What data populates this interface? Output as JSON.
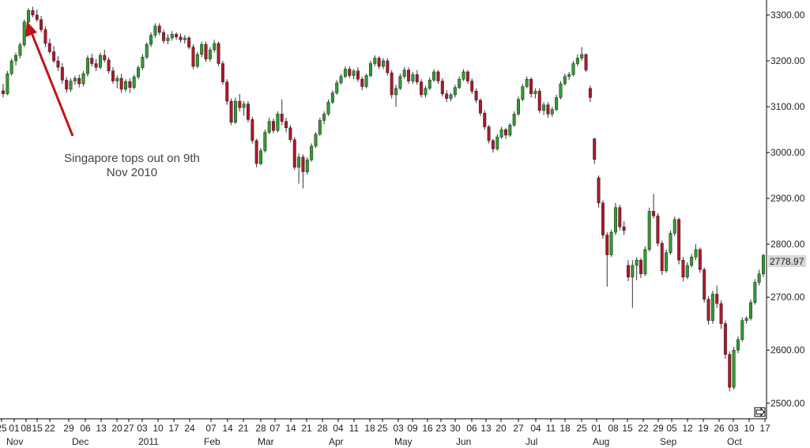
{
  "chart_data": {
    "type": "candlestick",
    "title": "",
    "xlabel": "",
    "ylabel": "",
    "ylim": [
      2490,
      3330
    ],
    "y_ticks": [
      2500,
      2600,
      2700,
      2800,
      2900,
      3000,
      3100,
      3200,
      3300
    ],
    "y_tick_labels": [
      "2500.00",
      "2600.00",
      "2700.00",
      "2800.00",
      "2900.00",
      "3000.00",
      "3100.00",
      "3200.00",
      "3300.00"
    ],
    "last_price_label": "2778.97",
    "last_price": 2778.97,
    "colors": {
      "up": "#2e9e2e",
      "down": "#b0182a",
      "wick": "#333333",
      "axis": "#000000",
      "arrow": "#c0121f",
      "price_tag_bg": "#d8d8d8"
    },
    "x_day_labels": [
      "25",
      "01",
      "08",
      "15",
      "22",
      "29",
      "06",
      "13",
      "20",
      "27",
      "03",
      "10",
      "17",
      "24",
      "07",
      "14",
      "21",
      "28",
      "07",
      "14",
      "21",
      "28",
      "04",
      "11",
      "18",
      "25",
      "03",
      "09",
      "16",
      "23",
      "30",
      "06",
      "13",
      "20",
      "27",
      "04",
      "11",
      "18",
      "25",
      "01",
      "08",
      "15",
      "22",
      "29",
      "05",
      "12",
      "19",
      "26",
      "03",
      "10",
      "17"
    ],
    "x_month_labels": [
      "Nov",
      "Dec",
      "2011",
      "Feb",
      "Mar",
      "Apr",
      "May",
      "Jun",
      "Jul",
      "Aug",
      "Sep",
      "Oct"
    ],
    "annotation": {
      "lines": [
        "Singapore tops out on 9th",
        "Nov 2010"
      ]
    },
    "candles": [
      [
        3135,
        3150,
        3120,
        3128
      ],
      [
        3128,
        3178,
        3125,
        3172
      ],
      [
        3172,
        3205,
        3168,
        3200
      ],
      [
        3200,
        3218,
        3190,
        3212
      ],
      [
        3212,
        3240,
        3205,
        3235
      ],
      [
        3235,
        3290,
        3230,
        3285
      ],
      [
        3285,
        3315,
        3280,
        3310
      ],
      [
        3310,
        3318,
        3295,
        3300
      ],
      [
        3300,
        3312,
        3285,
        3290
      ],
      [
        3290,
        3298,
        3262,
        3268
      ],
      [
        3268,
        3275,
        3230,
        3238
      ],
      [
        3238,
        3248,
        3215,
        3220
      ],
      [
        3220,
        3232,
        3195,
        3200
      ],
      [
        3200,
        3210,
        3178,
        3186
      ],
      [
        3186,
        3195,
        3150,
        3158
      ],
      [
        3158,
        3165,
        3130,
        3138
      ],
      [
        3138,
        3162,
        3132,
        3156
      ],
      [
        3156,
        3168,
        3148,
        3162
      ],
      [
        3162,
        3170,
        3142,
        3150
      ],
      [
        3150,
        3178,
        3144,
        3172
      ],
      [
        3172,
        3212,
        3166,
        3206
      ],
      [
        3206,
        3216,
        3188,
        3194
      ],
      [
        3194,
        3204,
        3178,
        3186
      ],
      [
        3186,
        3218,
        3182,
        3212
      ],
      [
        3212,
        3224,
        3196,
        3202
      ],
      [
        3202,
        3208,
        3172,
        3178
      ],
      [
        3178,
        3186,
        3150,
        3156
      ],
      [
        3156,
        3168,
        3140,
        3162
      ],
      [
        3162,
        3172,
        3130,
        3138
      ],
      [
        3138,
        3160,
        3132,
        3155
      ],
      [
        3155,
        3162,
        3130,
        3142
      ],
      [
        3142,
        3170,
        3138,
        3165
      ],
      [
        3165,
        3190,
        3160,
        3185
      ],
      [
        3185,
        3215,
        3180,
        3208
      ],
      [
        3208,
        3240,
        3204,
        3236
      ],
      [
        3236,
        3262,
        3230,
        3256
      ],
      [
        3256,
        3282,
        3250,
        3276
      ],
      [
        3276,
        3282,
        3256,
        3262
      ],
      [
        3262,
        3268,
        3238,
        3244
      ],
      [
        3244,
        3258,
        3236,
        3250
      ],
      [
        3250,
        3265,
        3244,
        3258
      ],
      [
        3258,
        3262,
        3246,
        3252
      ],
      [
        3252,
        3260,
        3240,
        3246
      ],
      [
        3246,
        3256,
        3238,
        3250
      ],
      [
        3250,
        3254,
        3225,
        3230
      ],
      [
        3230,
        3236,
        3182,
        3188
      ],
      [
        3188,
        3220,
        3184,
        3214
      ],
      [
        3214,
        3242,
        3208,
        3236
      ],
      [
        3236,
        3242,
        3198,
        3204
      ],
      [
        3204,
        3230,
        3198,
        3224
      ],
      [
        3224,
        3246,
        3218,
        3238
      ],
      [
        3238,
        3242,
        3188,
        3194
      ],
      [
        3194,
        3200,
        3148,
        3154
      ],
      [
        3154,
        3160,
        3104,
        3112
      ],
      [
        3112,
        3118,
        3060,
        3066
      ],
      [
        3066,
        3120,
        3062,
        3112
      ],
      [
        3112,
        3128,
        3090,
        3098
      ],
      [
        3098,
        3112,
        3080,
        3106
      ],
      [
        3106,
        3112,
        3066,
        3072
      ],
      [
        3072,
        3078,
        3020,
        3026
      ],
      [
        3026,
        3030,
        2968,
        2976
      ],
      [
        2976,
        3010,
        2972,
        3004
      ],
      [
        3004,
        3050,
        3000,
        3044
      ],
      [
        3044,
        3076,
        3040,
        3068
      ],
      [
        3068,
        3074,
        3042,
        3048
      ],
      [
        3048,
        3090,
        3044,
        3084
      ],
      [
        3084,
        3116,
        3060,
        3068
      ],
      [
        3068,
        3076,
        3044,
        3054
      ],
      [
        3054,
        3060,
        3022,
        3028
      ],
      [
        3028,
        3034,
        2962,
        2968
      ],
      [
        2968,
        2998,
        2932,
        2990
      ],
      [
        2990,
        2996,
        2922,
        2958
      ],
      [
        2958,
        2990,
        2952,
        2984
      ],
      [
        2984,
        3020,
        2980,
        3014
      ],
      [
        3014,
        3044,
        3010,
        3040
      ],
      [
        3040,
        3076,
        3036,
        3070
      ],
      [
        3070,
        3090,
        3062,
        3084
      ],
      [
        3084,
        3116,
        3080,
        3110
      ],
      [
        3110,
        3136,
        3106,
        3130
      ],
      [
        3130,
        3158,
        3126,
        3152
      ],
      [
        3152,
        3172,
        3148,
        3166
      ],
      [
        3166,
        3188,
        3162,
        3182
      ],
      [
        3182,
        3188,
        3162,
        3168
      ],
      [
        3168,
        3182,
        3160,
        3178
      ],
      [
        3178,
        3186,
        3154,
        3160
      ],
      [
        3160,
        3166,
        3136,
        3144
      ],
      [
        3144,
        3172,
        3140,
        3168
      ],
      [
        3168,
        3200,
        3164,
        3194
      ],
      [
        3194,
        3212,
        3188,
        3206
      ],
      [
        3206,
        3210,
        3182,
        3188
      ],
      [
        3188,
        3206,
        3182,
        3200
      ],
      [
        3200,
        3206,
        3168,
        3174
      ],
      [
        3174,
        3180,
        3118,
        3126
      ],
      [
        3126,
        3148,
        3100,
        3140
      ],
      [
        3140,
        3172,
        3136,
        3166
      ],
      [
        3166,
        3186,
        3160,
        3180
      ],
      [
        3180,
        3186,
        3150,
        3156
      ],
      [
        3156,
        3176,
        3150,
        3170
      ],
      [
        3170,
        3180,
        3148,
        3154
      ],
      [
        3154,
        3160,
        3120,
        3126
      ],
      [
        3126,
        3146,
        3120,
        3140
      ],
      [
        3140,
        3164,
        3136,
        3158
      ],
      [
        3158,
        3182,
        3154,
        3176
      ],
      [
        3176,
        3180,
        3150,
        3156
      ],
      [
        3156,
        3162,
        3122,
        3128
      ],
      [
        3128,
        3136,
        3110,
        3118
      ],
      [
        3118,
        3130,
        3112,
        3126
      ],
      [
        3126,
        3148,
        3120,
        3142
      ],
      [
        3142,
        3166,
        3138,
        3160
      ],
      [
        3160,
        3182,
        3156,
        3176
      ],
      [
        3176,
        3180,
        3150,
        3156
      ],
      [
        3156,
        3162,
        3128,
        3134
      ],
      [
        3134,
        3140,
        3108,
        3114
      ],
      [
        3114,
        3118,
        3080,
        3086
      ],
      [
        3086,
        3092,
        3050,
        3056
      ],
      [
        3056,
        3060,
        3020,
        3026
      ],
      [
        3026,
        3030,
        3000,
        3008
      ],
      [
        3008,
        3040,
        3004,
        3034
      ],
      [
        3034,
        3056,
        3030,
        3050
      ],
      [
        3050,
        3054,
        3030,
        3038
      ],
      [
        3038,
        3064,
        3034,
        3060
      ],
      [
        3060,
        3090,
        3056,
        3084
      ],
      [
        3084,
        3122,
        3080,
        3116
      ],
      [
        3116,
        3150,
        3112,
        3144
      ],
      [
        3144,
        3166,
        3140,
        3160
      ],
      [
        3160,
        3164,
        3120,
        3128
      ],
      [
        3128,
        3140,
        3118,
        3134
      ],
      [
        3134,
        3140,
        3086,
        3092
      ],
      [
        3092,
        3110,
        3082,
        3104
      ],
      [
        3104,
        3110,
        3076,
        3084
      ],
      [
        3084,
        3100,
        3078,
        3094
      ],
      [
        3094,
        3126,
        3090,
        3120
      ],
      [
        3120,
        3156,
        3116,
        3150
      ],
      [
        3150,
        3172,
        3146,
        3166
      ],
      [
        3166,
        3176,
        3158,
        3170
      ],
      [
        3170,
        3200,
        3166,
        3194
      ],
      [
        3194,
        3214,
        3188,
        3206
      ],
      [
        3206,
        3230,
        3200,
        3214
      ],
      [
        3214,
        3216,
        3176,
        3180
      ],
      [
        3140,
        3146,
        3110,
        3120
      ],
      [
        3030,
        3032,
        2975,
        2985
      ],
      [
        2945,
        2950,
        2880,
        2890
      ],
      [
        2890,
        2896,
        2812,
        2820
      ],
      [
        2820,
        2826,
        2720,
        2780
      ],
      [
        2780,
        2832,
        2776,
        2826
      ],
      [
        2826,
        2890,
        2820,
        2880
      ],
      [
        2880,
        2886,
        2830,
        2838
      ],
      [
        2838,
        2850,
        2820,
        2830
      ],
      [
        2760,
        2770,
        2730,
        2738
      ],
      [
        2738,
        2770,
        2680,
        2760
      ],
      [
        2760,
        2776,
        2732,
        2770
      ],
      [
        2770,
        2774,
        2736,
        2744
      ],
      [
        2744,
        2796,
        2740,
        2790
      ],
      [
        2790,
        2880,
        2786,
        2872
      ],
      [
        2872,
        2910,
        2856,
        2862
      ],
      [
        2862,
        2868,
        2796,
        2802
      ],
      [
        2802,
        2808,
        2742,
        2750
      ],
      [
        2750,
        2790,
        2746,
        2784
      ],
      [
        2784,
        2830,
        2780,
        2824
      ],
      [
        2824,
        2860,
        2818,
        2854
      ],
      [
        2854,
        2858,
        2762,
        2770
      ],
      [
        2770,
        2776,
        2730,
        2738
      ],
      [
        2738,
        2766,
        2734,
        2760
      ],
      [
        2760,
        2782,
        2756,
        2776
      ],
      [
        2776,
        2800,
        2770,
        2790
      ],
      [
        2790,
        2794,
        2746,
        2752
      ],
      [
        2752,
        2756,
        2690,
        2696
      ],
      [
        2696,
        2702,
        2648,
        2656
      ],
      [
        2656,
        2712,
        2650,
        2706
      ],
      [
        2706,
        2722,
        2680,
        2688
      ],
      [
        2688,
        2694,
        2640,
        2650
      ],
      [
        2650,
        2656,
        2584,
        2592
      ],
      [
        2592,
        2598,
        2522,
        2530
      ],
      [
        2530,
        2606,
        2526,
        2600
      ],
      [
        2600,
        2626,
        2594,
        2620
      ],
      [
        2620,
        2662,
        2616,
        2656
      ],
      [
        2656,
        2664,
        2650,
        2660
      ],
      [
        2660,
        2696,
        2656,
        2690
      ],
      [
        2690,
        2734,
        2686,
        2728
      ],
      [
        2728,
        2752,
        2722,
        2744
      ],
      [
        2744,
        2782,
        2738,
        2778.97
      ]
    ]
  }
}
